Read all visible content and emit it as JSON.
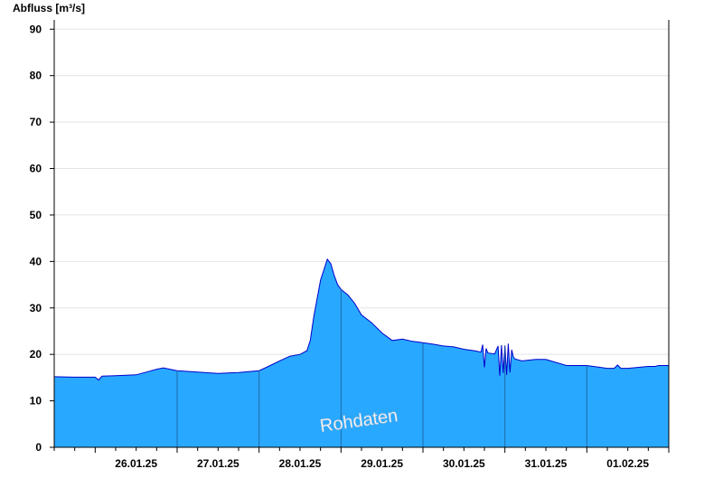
{
  "chart_data": {
    "type": "area",
    "ylabel": "Abfluss [m³/s]",
    "ylim": [
      0,
      92
    ],
    "yticks": [
      0,
      10,
      20,
      30,
      40,
      50,
      60,
      70,
      80,
      90
    ],
    "xlim": [
      "25.01.25 12:00",
      "01.02.25 24:00"
    ],
    "xtick_labels": [
      "26.01.25",
      "27.01.25",
      "28.01.25",
      "29.01.25",
      "30.01.25",
      "31.01.25",
      "01.02.25"
    ],
    "grid": true,
    "watermark": "Rohdaten",
    "colors": {
      "fill": "#29a8ff",
      "line": "#0000cc",
      "grid": "#e4e4e4",
      "axis": "#000000",
      "day_separator": "#1f5f9a"
    },
    "series": [
      {
        "x": [
          "25.01.25 12:00",
          "25.01.25 18:00",
          "26.01.25 00:00",
          "26.01.25 01:00",
          "26.01.25 02:00",
          "26.01.25 06:00",
          "26.01.25 12:00",
          "26.01.25 16:00",
          "26.01.25 18:00",
          "26.01.25 20:00",
          "27.01.25 00:00",
          "27.01.25 06:00",
          "27.01.25 12:00",
          "27.01.25 18:00",
          "28.01.25 00:00",
          "28.01.25 03:00",
          "28.01.25 06:00",
          "28.01.25 09:00",
          "28.01.25 12:00",
          "28.01.25 14:00",
          "28.01.25 15:00",
          "28.01.25 16:00",
          "28.01.25 18:00",
          "28.01.25 20:00",
          "28.01.25 21:00",
          "28.01.25 22:00",
          "28.01.25 23:00",
          "29.01.25 00:00",
          "29.01.25 02:00",
          "29.01.25 04:00",
          "29.01.25 06:00",
          "29.01.25 09:00",
          "29.01.25 12:00",
          "29.01.25 15:00",
          "29.01.25 18:00",
          "29.01.25 21:00",
          "30.01.25 00:00",
          "30.01.25 03:00",
          "30.01.25 06:00",
          "30.01.25 09:00",
          "30.01.25 12:00",
          "30.01.25 15:00",
          "30.01.25 17:00",
          "30.01.25 17:30",
          "30.01.25 18:00",
          "30.01.25 18:30",
          "30.01.25 19:00",
          "30.01.25 21:00",
          "30.01.25 22:00",
          "30.01.25 22:30",
          "30.01.25 23:00",
          "30.01.25 23:30",
          "31.01.25 00:00",
          "31.01.25 00:30",
          "31.01.25 01:00",
          "31.01.25 01:30",
          "31.01.25 02:00",
          "31.01.25 02:30",
          "31.01.25 03:00",
          "31.01.25 05:00",
          "31.01.25 09:00",
          "31.01.25 12:00",
          "31.01.25 18:00",
          "31.01.25 21:00",
          "01.02.25 00:00",
          "01.02.25 06:00",
          "01.02.25 08:00",
          "01.02.25 09:00",
          "01.02.25 10:00",
          "01.02.25 12:00",
          "01.02.25 18:00",
          "01.02.25 20:00",
          "01.02.25 21:00",
          "01.02.25 24:00"
        ],
        "y": [
          15.2,
          15.1,
          15.1,
          14.5,
          15.3,
          15.4,
          15.6,
          16.4,
          16.8,
          17.1,
          16.5,
          16.2,
          15.9,
          16.1,
          16.5,
          17.5,
          18.6,
          19.6,
          20.0,
          20.8,
          23.0,
          28.0,
          36.0,
          40.5,
          39.5,
          37.0,
          35.0,
          34.0,
          32.8,
          31.0,
          28.5,
          26.8,
          24.6,
          23.0,
          23.3,
          22.8,
          22.5,
          22.2,
          21.8,
          21.6,
          21.1,
          20.8,
          20.5,
          22.1,
          17.2,
          21.3,
          20.3,
          20.1,
          21.8,
          15.4,
          22.0,
          16.0,
          21.9,
          15.6,
          22.3,
          16.1,
          21.0,
          19.4,
          19.0,
          18.6,
          18.9,
          18.9,
          17.6,
          17.6,
          17.6,
          17.0,
          17.0,
          17.7,
          17.0,
          17.0,
          17.4,
          17.4,
          17.6,
          17.6
        ]
      }
    ]
  }
}
